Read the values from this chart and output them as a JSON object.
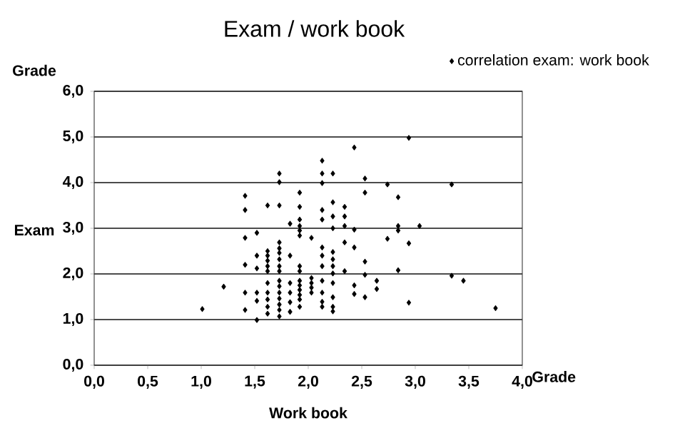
{
  "chart_data": {
    "type": "scatter",
    "title": "Exam / work book",
    "xlabel": "Work book",
    "ylabel": "Exam",
    "annotations": [
      "Grade",
      "Grade"
    ],
    "xlim": [
      0,
      4
    ],
    "ylim": [
      0,
      6
    ],
    "xticks": [
      {
        "value": 0,
        "label": "0,0"
      },
      {
        "value": 0.5,
        "label": "0,5"
      },
      {
        "value": 1,
        "label": "1,0"
      },
      {
        "value": 1.5,
        "label": "1,5"
      },
      {
        "value": 2,
        "label": "2,0"
      },
      {
        "value": 2.5,
        "label": "2,5"
      },
      {
        "value": 3,
        "label": "3,0"
      },
      {
        "value": 3.5,
        "label": "3,5"
      },
      {
        "value": 4,
        "label": "4,0"
      }
    ],
    "yticks": [
      {
        "value": 0,
        "label": "0,0"
      },
      {
        "value": 1,
        "label": "1,0"
      },
      {
        "value": 2,
        "label": "2,0"
      },
      {
        "value": 3,
        "label": "3,0"
      },
      {
        "value": 4,
        "label": "4,0"
      },
      {
        "value": 5,
        "label": "5,0"
      },
      {
        "value": 6,
        "label": "6,0"
      }
    ],
    "grid": "y",
    "legend": "top right",
    "marker": "diamond",
    "series": [
      {
        "name": "correlation  exam: work book",
        "color": "#000000",
        "x": [
          1.01,
          1.21,
          1.41,
          1.41,
          1.41,
          1.41,
          1.41,
          1.41,
          1.52,
          1.52,
          1.52,
          1.52,
          1.52,
          1.52,
          1.62,
          1.62,
          1.62,
          1.62,
          1.62,
          1.62,
          1.62,
          1.62,
          1.62,
          1.62,
          1.62,
          1.73,
          1.73,
          1.73,
          1.73,
          1.73,
          1.73,
          1.73,
          1.73,
          1.73,
          1.73,
          1.73,
          1.73,
          1.73,
          1.73,
          1.73,
          1.73,
          1.83,
          1.83,
          1.83,
          1.83,
          1.83,
          1.83,
          1.92,
          1.92,
          1.92,
          1.92,
          1.92,
          1.92,
          1.92,
          1.92,
          1.92,
          1.92,
          1.92,
          1.92,
          1.92,
          1.92,
          2.03,
          2.03,
          2.03,
          2.03,
          2.03,
          2.13,
          2.13,
          2.13,
          2.13,
          2.13,
          2.13,
          2.13,
          2.13,
          2.13,
          2.13,
          2.13,
          2.13,
          2.23,
          2.23,
          2.23,
          2.23,
          2.23,
          2.23,
          2.23,
          2.23,
          2.23,
          2.23,
          2.23,
          2.23,
          2.34,
          2.34,
          2.34,
          2.34,
          2.34,
          2.43,
          2.43,
          2.43,
          2.43,
          2.43,
          2.53,
          2.53,
          2.53,
          2.53,
          2.53,
          2.64,
          2.64,
          2.74,
          2.74,
          2.84,
          2.84,
          2.84,
          2.84,
          2.94,
          2.94,
          2.94,
          3.04,
          3.34,
          3.34,
          3.45,
          3.75
        ],
        "values": [
          1.23,
          1.72,
          3.71,
          3.4,
          2.79,
          2.2,
          1.59,
          1.21,
          2.9,
          2.4,
          2.12,
          1.59,
          1.41,
          0.99,
          3.5,
          2.5,
          2.4,
          2.29,
          2.17,
          2.06,
          1.8,
          1.59,
          1.44,
          1.28,
          1.13,
          4.2,
          4.01,
          3.5,
          2.69,
          2.56,
          2.46,
          2.32,
          2.17,
          2.06,
          1.85,
          1.73,
          1.59,
          1.46,
          1.33,
          1.21,
          1.07,
          3.1,
          2.4,
          1.8,
          1.59,
          1.38,
          1.17,
          3.78,
          3.47,
          3.19,
          3.05,
          2.95,
          2.84,
          2.17,
          2.06,
          1.85,
          1.75,
          1.65,
          1.54,
          1.44,
          1.28,
          2.79,
          1.91,
          1.8,
          1.7,
          1.59,
          4.48,
          4.2,
          3.99,
          3.4,
          3.19,
          2.58,
          2.4,
          2.17,
          1.85,
          1.59,
          1.39,
          1.28,
          4.2,
          3.57,
          3.26,
          3.0,
          2.48,
          2.32,
          2.17,
          2.01,
          1.8,
          1.49,
          1.28,
          1.18,
          3.47,
          3.26,
          3.05,
          2.69,
          2.06,
          4.77,
          2.97,
          2.58,
          1.75,
          1.56,
          4.09,
          3.78,
          2.27,
          1.98,
          1.49,
          1.85,
          1.67,
          3.96,
          2.77,
          3.68,
          3.05,
          2.95,
          2.08,
          2.67,
          1.37,
          4.98,
          3.05,
          3.96,
          1.96,
          1.85,
          1.25
        ]
      }
    ]
  }
}
